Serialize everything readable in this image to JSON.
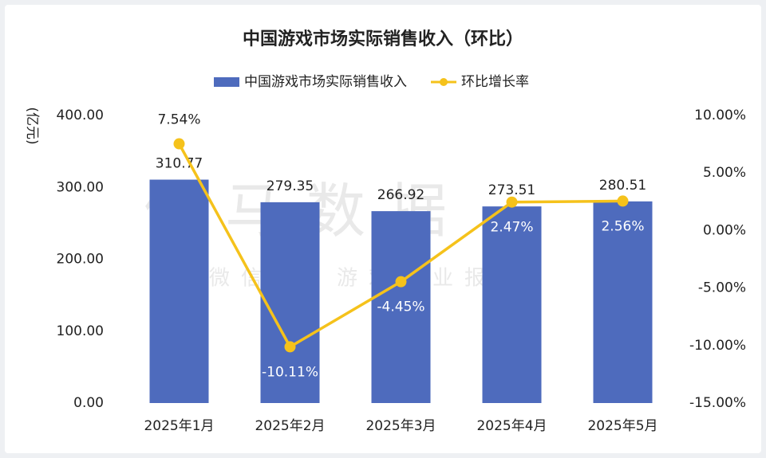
{
  "chart_data": {
    "type": "bar",
    "title": "中国游戏市场实际销售收入（环比）",
    "y_label": "(亿元)",
    "watermark": "伽马数据",
    "watermark_subtitle": "微信号：游戏产业报告",
    "categories": [
      "2025年1月",
      "2025年2月",
      "2025年3月",
      "2025年4月",
      "2025年5月"
    ],
    "series": [
      {
        "name": "中国游戏市场实际销售收入",
        "type": "bar",
        "color": "#4e6bbd",
        "values": [
          310.77,
          279.35,
          266.92,
          273.51,
          280.51
        ]
      },
      {
        "name": "环比增长率",
        "type": "line",
        "axis": "y2",
        "color": "#f5c21b",
        "values": [
          7.54,
          -10.11,
          -4.45,
          2.47,
          2.56
        ],
        "value_labels": [
          "7.54%",
          "-10.11%",
          "-4.45%",
          "2.47%",
          "2.56%"
        ]
      }
    ],
    "ylim": [
      0,
      400
    ],
    "yticks": [
      {
        "value": 0,
        "label": "0.00"
      },
      {
        "value": 100,
        "label": "100.00"
      },
      {
        "value": 200,
        "label": "200.00"
      },
      {
        "value": 300,
        "label": "300.00"
      },
      {
        "value": 400,
        "label": "400.00"
      }
    ],
    "y2lim": [
      -15,
      10
    ],
    "y2ticks": [
      {
        "value": -15,
        "label": "-15.00%"
      },
      {
        "value": -10,
        "label": "-10.00%"
      },
      {
        "value": -5,
        "label": "-5.00%"
      },
      {
        "value": 0,
        "label": "0.00%"
      },
      {
        "value": 5,
        "label": "5.00%"
      },
      {
        "value": 10,
        "label": "10.00%"
      }
    ],
    "grid": false,
    "legend": "top"
  }
}
